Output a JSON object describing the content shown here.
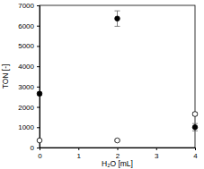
{
  "chart_data": {
    "type": "scatter",
    "x_label": "H₂O [mL]",
    "y_label": "TON [-]",
    "x": [
      0,
      2,
      4
    ],
    "series": [
      {
        "color": "#000000",
        "marker": "filled",
        "values": [
          2650,
          6350,
          1000
        ],
        "errors": [
          80,
          380,
          180
        ]
      },
      {
        "color": "#000000",
        "marker": "open",
        "values": [
          350,
          350,
          1650
        ],
        "errors": [
          40,
          40,
          80
        ]
      }
    ],
    "xlim": [
      0,
      4
    ],
    "xticks": [
      0,
      1,
      2,
      3,
      4
    ],
    "ylim": [
      0,
      7000
    ],
    "yticks": [
      0,
      1000,
      2000,
      3000,
      4000,
      5000,
      6000,
      7000
    ],
    "grid": false
  }
}
